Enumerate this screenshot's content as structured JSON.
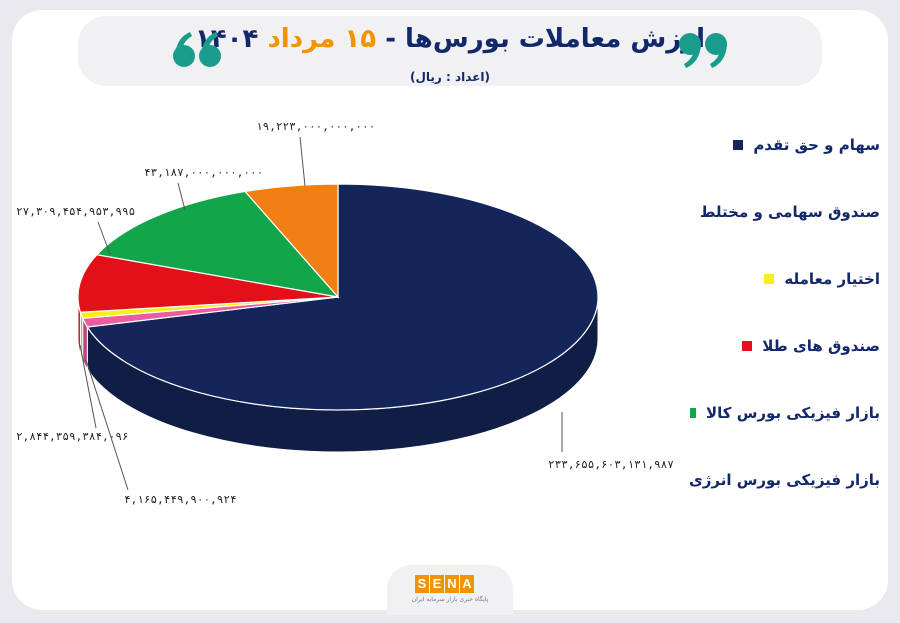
{
  "header": {
    "title_main": "ارزش معاملات بورس‌ها",
    "title_separator": "-",
    "title_date_highlight": "۱۵ مرداد",
    "title_year": "۱۴۰۴",
    "subtitle": "(اعداد : ریال)"
  },
  "footer": {
    "logo_letters": [
      "S",
      "E",
      "N",
      "A"
    ],
    "tagline": "پایگاه خبری بازار سرمایه ایران"
  },
  "colors": {
    "navy": "#13286a",
    "orange": "#f39300",
    "quote": "#1a9c8c"
  },
  "chart_data": {
    "type": "pie",
    "title": "ارزش معاملات بورس‌ها - ۱۵ مرداد ۱۴۰۴",
    "unit": "(اعداد : ریال)",
    "legend_position": "right",
    "series": [
      {
        "name": "سهام و حق تقدم",
        "value": 233655603131987,
        "label": "۲۳۳,۶۵۵,۶۰۳,۱۳۱,۹۸۷",
        "color": "#142559"
      },
      {
        "name": "صندوق سهامی و مختلط",
        "value": 4165449900924,
        "label": "۴,۱۶۵,۴۴۹,۹۰۰,۹۲۴",
        "color": "#ef5ba1"
      },
      {
        "name": "اختیار معامله",
        "value": 2844359384096,
        "label": "۲,۸۴۴,۳۵۹,۳۸۴,۰۹۶",
        "color": "#f6f01a"
      },
      {
        "name": "صندوق های طلا",
        "value": 27309454953995,
        "label": "۲۷,۳۰۹,۴۵۴,۹۵۳,۹۹۵",
        "color": "#e3101a"
      },
      {
        "name": "بازار فیزیکی بورس کالا",
        "value": 43187000000000,
        "label": "۴۳,۱۸۷,۰۰۰,۰۰۰,۰۰۰",
        "color": "#12a54a"
      },
      {
        "name": "بازار فیزیکی بورس انرژی",
        "value": 19223000000000,
        "label": "۱۹,۲۲۳,۰۰۰,۰۰۰,۰۰۰",
        "color": "#f27f14"
      }
    ]
  }
}
